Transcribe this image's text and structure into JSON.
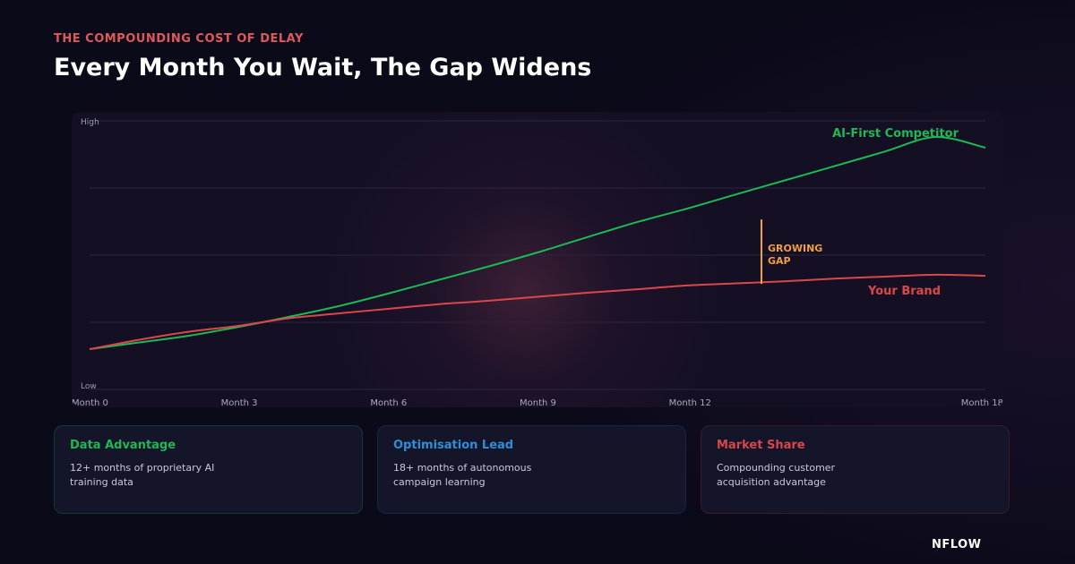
{
  "header": {
    "eyebrow": "THE COMPOUNDING COST OF DELAY",
    "title": "Every Month You Wait, The Gap Widens"
  },
  "colors": {
    "competitor": "#1db954",
    "brand": "#d9474b",
    "gap": "#f0a03c",
    "blue_accent": "#2f8fd6"
  },
  "chart_data": {
    "type": "line",
    "x": [
      0,
      1,
      2,
      3,
      4,
      5,
      6,
      7,
      8,
      9,
      10,
      11,
      12,
      13,
      14,
      15,
      16,
      17,
      18
    ],
    "xticks": [
      {
        "value": 0,
        "label": "Month 0"
      },
      {
        "value": 3,
        "label": "Month 3"
      },
      {
        "value": 6,
        "label": "Month 6"
      },
      {
        "value": 9,
        "label": "Month 9"
      },
      {
        "value": 12,
        "label": "Month 12"
      },
      {
        "value": 18,
        "label": "Month 18"
      }
    ],
    "y_axis_labels": {
      "high": "High",
      "low": "Low"
    },
    "ylim": [
      0,
      100
    ],
    "grid": true,
    "series": [
      {
        "name": "AI-First Competitor",
        "color": "#1db954",
        "values": [
          15.0,
          17.5,
          20.0,
          23.3,
          27.0,
          31.0,
          35.7,
          40.7,
          45.7,
          51.0,
          56.7,
          62.3,
          67.3,
          72.7,
          78.0,
          83.3,
          88.7,
          94.0,
          90.0
        ]
      },
      {
        "name": "Your Brand",
        "color": "#d9474b",
        "values": [
          15.0,
          18.5,
          21.5,
          23.7,
          26.5,
          28.3,
          30.0,
          31.7,
          33.0,
          34.5,
          36.0,
          37.3,
          38.7,
          39.5,
          40.3,
          41.3,
          42.0,
          42.7,
          42.3
        ]
      }
    ],
    "annotation": {
      "text_lines": [
        "GROWING",
        "GAP"
      ],
      "x": 13.5,
      "y_top": 63.3,
      "y_bottom": 39.3
    }
  },
  "cards": [
    {
      "title": "Data Advantage",
      "body": "12+ months of proprietary AI training data",
      "accent": "#1db954"
    },
    {
      "title": "Optimisation Lead",
      "body": "18+ months of autonomous campaign learning",
      "accent": "#2f8fd6"
    },
    {
      "title": "Market Share",
      "body": "Compounding customer acquisition advantage",
      "accent": "#d9474b"
    }
  ],
  "brand": {
    "logo": "NFLOW"
  }
}
